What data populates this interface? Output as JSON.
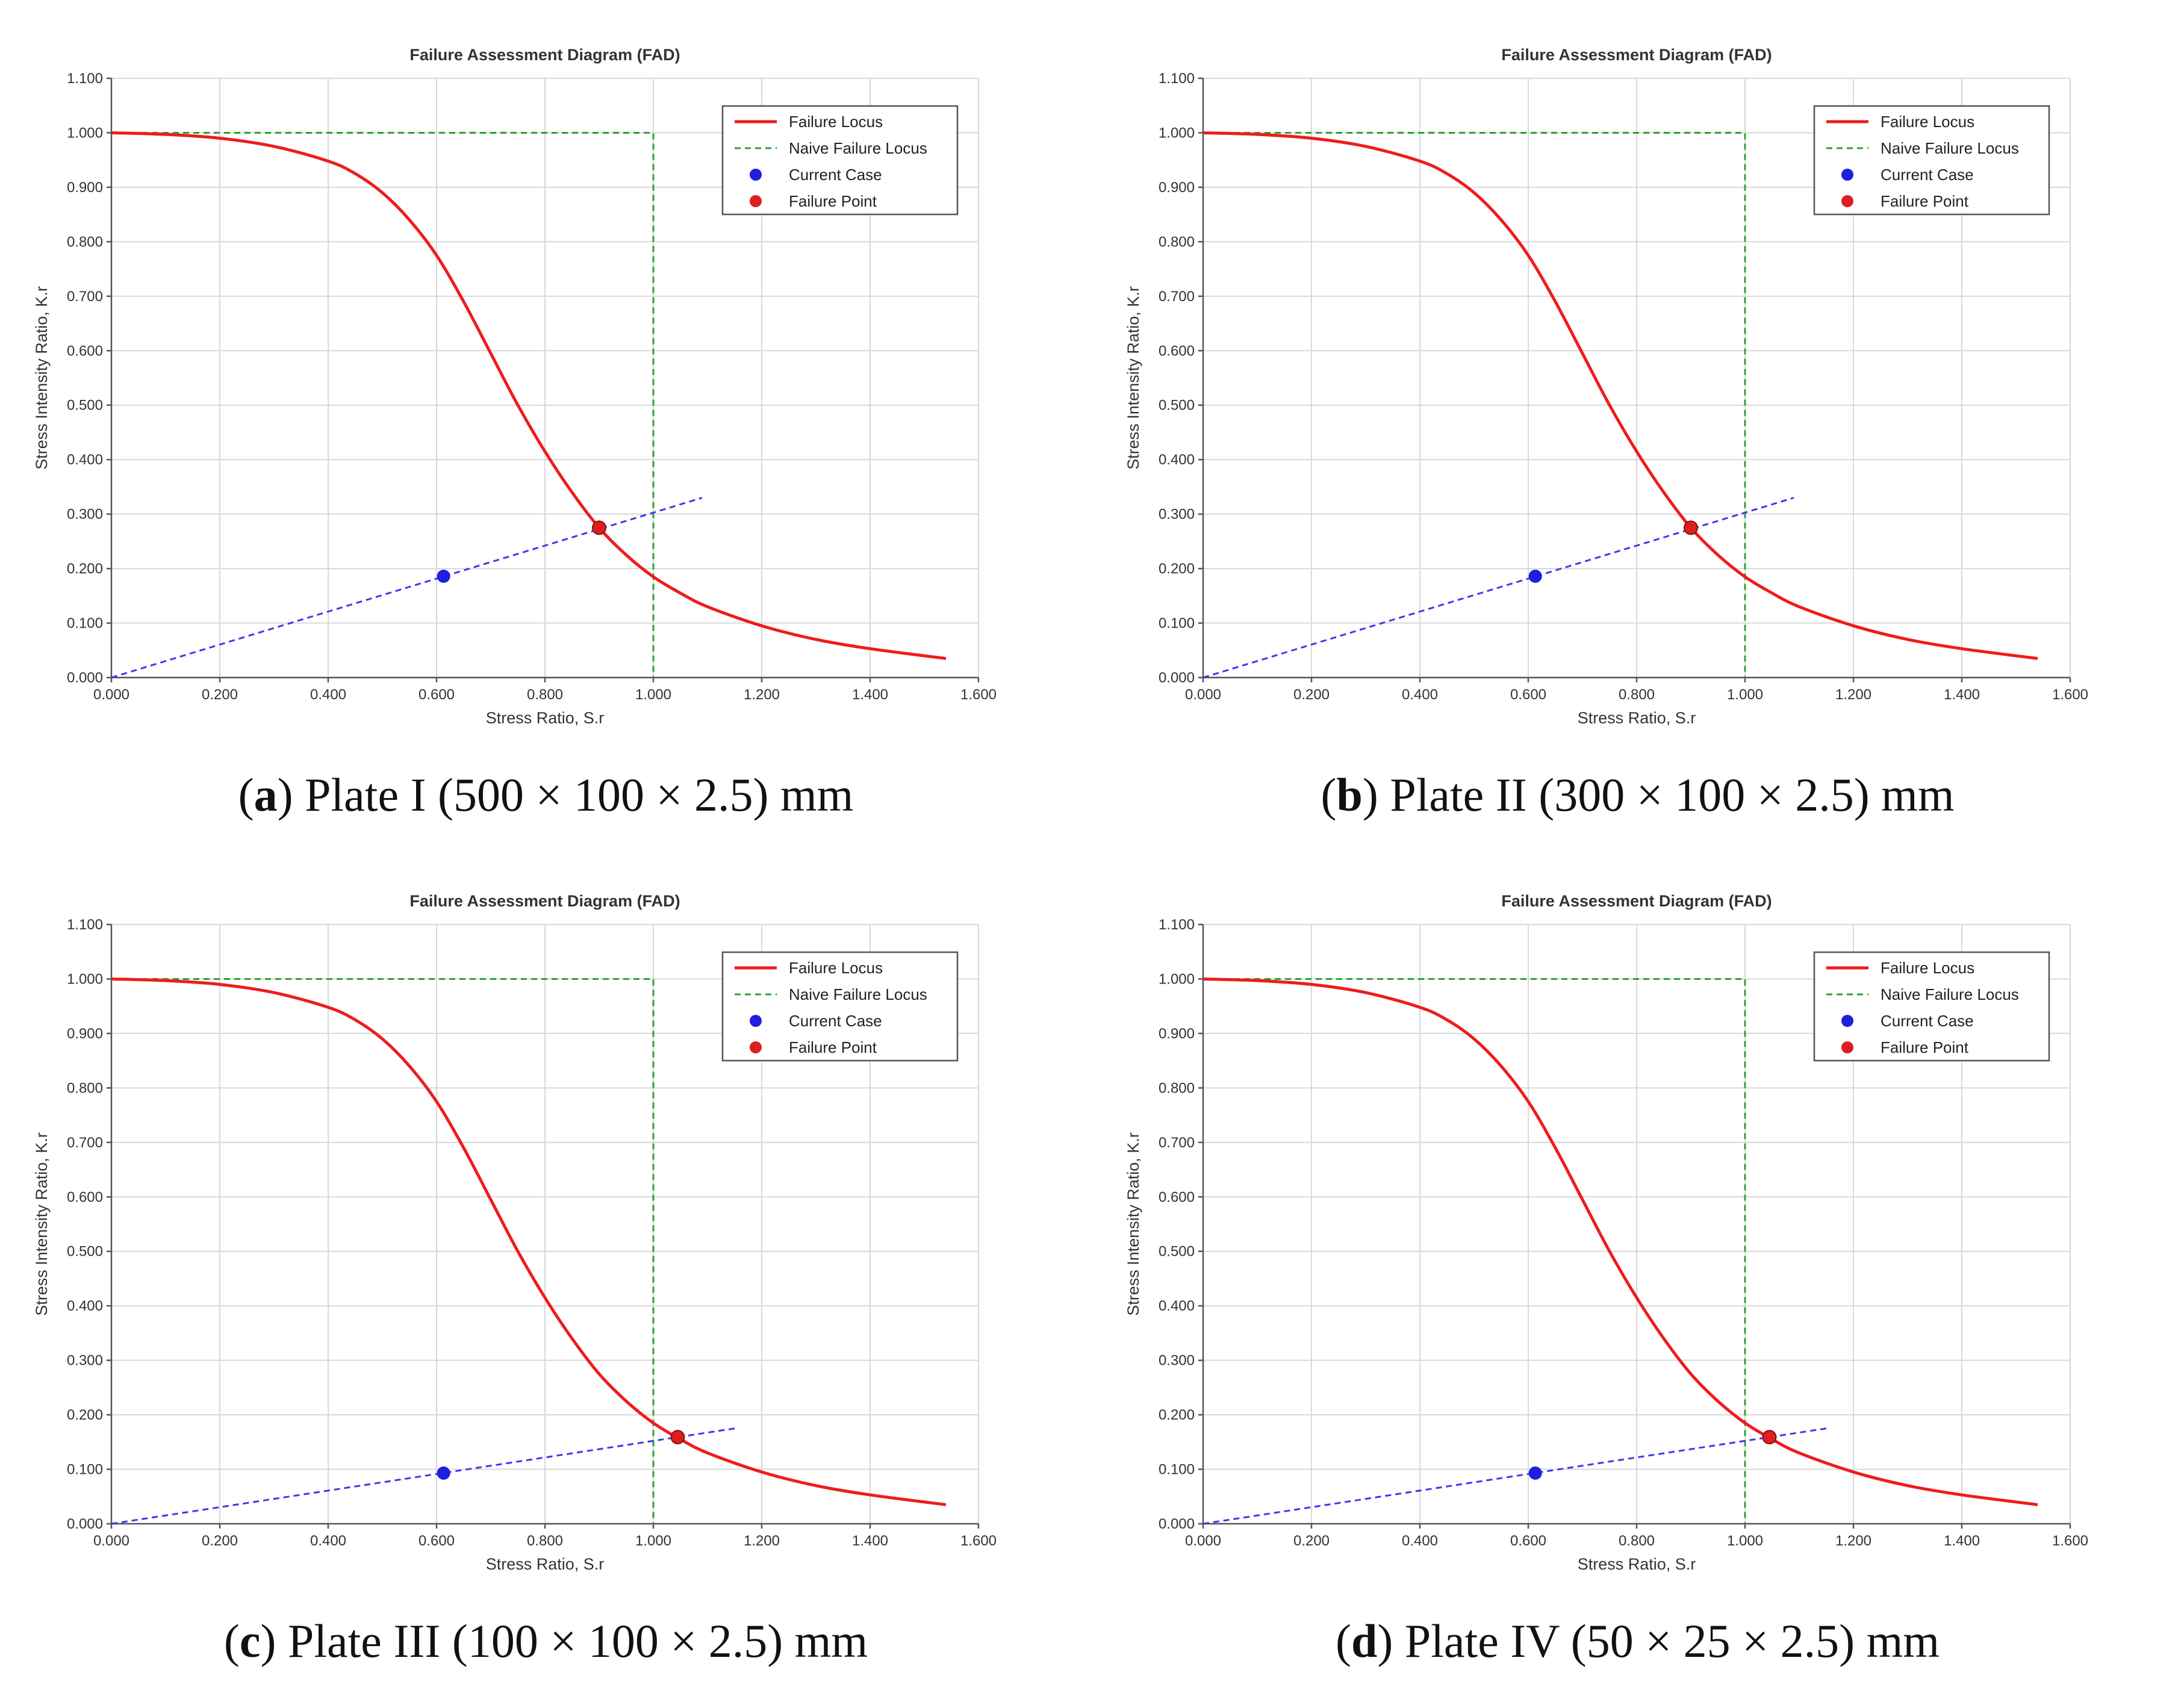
{
  "colors": {
    "failure_locus": "#ee1c1c",
    "naive_locus": "#2ea02e",
    "current_case": "#1f1fdd",
    "failure_point": "#dd1f1f",
    "load_line": "#3a3aee",
    "grid": "#d9d9d9"
  },
  "chart_data": [
    {
      "type": "line",
      "title": "Failure Assessment Diagram (FAD)",
      "xlabel": "Stress Ratio, S.r",
      "ylabel": "Stress Intensity Ratio, K.r",
      "xlim": [
        0,
        1.6
      ],
      "ylim": [
        0,
        1.1
      ],
      "x_ticks": [
        "0.000",
        "0.200",
        "0.400",
        "0.600",
        "0.800",
        "1.000",
        "1.200",
        "1.400",
        "1.600"
      ],
      "y_ticks": [
        "0.000",
        "0.100",
        "0.200",
        "0.300",
        "0.400",
        "0.500",
        "0.600",
        "0.700",
        "0.800",
        "0.900",
        "1.000",
        "1.100"
      ],
      "grid": true,
      "legend_position": "top-right",
      "legend": [
        "Failure Locus",
        "Naive Failure Locus",
        "Current Case",
        "Failure Point"
      ],
      "failure_locus": {
        "x": [
          0.0,
          0.1,
          0.2,
          0.3,
          0.4,
          0.45,
          0.5,
          0.55,
          0.6,
          0.65,
          0.7,
          0.75,
          0.8,
          0.85,
          0.9,
          0.95,
          1.0,
          1.05,
          1.1,
          1.2,
          1.3,
          1.4,
          1.54
        ],
        "y": [
          1.0,
          0.997,
          0.99,
          0.975,
          0.948,
          0.925,
          0.89,
          0.84,
          0.775,
          0.69,
          0.595,
          0.5,
          0.415,
          0.34,
          0.275,
          0.225,
          0.185,
          0.155,
          0.13,
          0.095,
          0.07,
          0.053,
          0.035
        ]
      },
      "naive_failure_locus": {
        "x": [
          0,
          1.0,
          1.0
        ],
        "y": [
          1.0,
          1.0,
          0.0
        ]
      },
      "load_line": {
        "x": [
          0,
          1.09
        ],
        "y": [
          0,
          0.33
        ]
      },
      "current_case": {
        "x": 0.613,
        "y": 0.186
      },
      "failure_point": {
        "x": 0.9,
        "y": 0.275
      },
      "caption": {
        "letter": "a",
        "text": " Plate I (500 × 100 × 2.5) mm"
      }
    },
    {
      "type": "line",
      "title": "Failure Assessment Diagram (FAD)",
      "xlabel": "Stress Ratio, S.r",
      "ylabel": "Stress Intensity Ratio, K.r",
      "xlim": [
        0,
        1.6
      ],
      "ylim": [
        0,
        1.1
      ],
      "x_ticks": [
        "0.000",
        "0.200",
        "0.400",
        "0.600",
        "0.800",
        "1.000",
        "1.200",
        "1.400",
        "1.600"
      ],
      "y_ticks": [
        "0.000",
        "0.100",
        "0.200",
        "0.300",
        "0.400",
        "0.500",
        "0.600",
        "0.700",
        "0.800",
        "0.900",
        "1.000",
        "1.100"
      ],
      "grid": true,
      "legend_position": "top-right",
      "legend": [
        "Failure Locus",
        "Naive Failure Locus",
        "Current Case",
        "Failure Point"
      ],
      "failure_locus": {
        "x": [
          0.0,
          0.1,
          0.2,
          0.3,
          0.4,
          0.45,
          0.5,
          0.55,
          0.6,
          0.65,
          0.7,
          0.75,
          0.8,
          0.85,
          0.9,
          0.95,
          1.0,
          1.05,
          1.1,
          1.2,
          1.3,
          1.4,
          1.54
        ],
        "y": [
          1.0,
          0.997,
          0.99,
          0.975,
          0.948,
          0.925,
          0.89,
          0.84,
          0.775,
          0.69,
          0.595,
          0.5,
          0.415,
          0.34,
          0.275,
          0.225,
          0.185,
          0.155,
          0.13,
          0.095,
          0.07,
          0.053,
          0.035
        ]
      },
      "naive_failure_locus": {
        "x": [
          0,
          1.0,
          1.0
        ],
        "y": [
          1.0,
          1.0,
          0.0
        ]
      },
      "load_line": {
        "x": [
          0,
          1.09
        ],
        "y": [
          0,
          0.33
        ]
      },
      "current_case": {
        "x": 0.613,
        "y": 0.186
      },
      "failure_point": {
        "x": 0.9,
        "y": 0.275
      },
      "caption": {
        "letter": "b",
        "text": " Plate II (300 × 100 × 2.5) mm"
      }
    },
    {
      "type": "line",
      "title": "Failure Assessment Diagram (FAD)",
      "xlabel": "Stress Ratio, S.r",
      "ylabel": "Stress Intensity Ratio, K.r",
      "xlim": [
        0,
        1.6
      ],
      "ylim": [
        0,
        1.1
      ],
      "x_ticks": [
        "0.000",
        "0.200",
        "0.400",
        "0.600",
        "0.800",
        "1.000",
        "1.200",
        "1.400",
        "1.600"
      ],
      "y_ticks": [
        "0.000",
        "0.100",
        "0.200",
        "0.300",
        "0.400",
        "0.500",
        "0.600",
        "0.700",
        "0.800",
        "0.900",
        "1.000",
        "1.100"
      ],
      "grid": true,
      "legend_position": "top-right",
      "legend": [
        "Failure Locus",
        "Naive Failure Locus",
        "Current Case",
        "Failure Point"
      ],
      "failure_locus": {
        "x": [
          0.0,
          0.1,
          0.2,
          0.3,
          0.4,
          0.45,
          0.5,
          0.55,
          0.6,
          0.65,
          0.7,
          0.75,
          0.8,
          0.85,
          0.9,
          0.95,
          1.0,
          1.05,
          1.1,
          1.2,
          1.3,
          1.4,
          1.54
        ],
        "y": [
          1.0,
          0.997,
          0.99,
          0.975,
          0.948,
          0.925,
          0.89,
          0.84,
          0.775,
          0.69,
          0.595,
          0.5,
          0.415,
          0.34,
          0.275,
          0.225,
          0.185,
          0.155,
          0.13,
          0.095,
          0.07,
          0.053,
          0.035
        ]
      },
      "naive_failure_locus": {
        "x": [
          0,
          1.0,
          1.0
        ],
        "y": [
          1.0,
          1.0,
          0.0
        ]
      },
      "load_line": {
        "x": [
          0,
          1.15
        ],
        "y": [
          0,
          0.175
        ]
      },
      "current_case": {
        "x": 0.613,
        "y": 0.093
      },
      "failure_point": {
        "x": 1.045,
        "y": 0.159
      },
      "caption": {
        "letter": "c",
        "text": " Plate III (100 × 100 × 2.5) mm"
      }
    },
    {
      "type": "line",
      "title": "Failure Assessment Diagram (FAD)",
      "xlabel": "Stress Ratio, S.r",
      "ylabel": "Stress Intensity Ratio, K.r",
      "xlim": [
        0,
        1.6
      ],
      "ylim": [
        0,
        1.1
      ],
      "x_ticks": [
        "0.000",
        "0.200",
        "0.400",
        "0.600",
        "0.800",
        "1.000",
        "1.200",
        "1.400",
        "1.600"
      ],
      "y_ticks": [
        "0.000",
        "0.100",
        "0.200",
        "0.300",
        "0.400",
        "0.500",
        "0.600",
        "0.700",
        "0.800",
        "0.900",
        "1.000",
        "1.100"
      ],
      "grid": true,
      "legend_position": "top-right",
      "legend": [
        "Failure Locus",
        "Naive Failure Locus",
        "Current Case",
        "Failure Point"
      ],
      "failure_locus": {
        "x": [
          0.0,
          0.1,
          0.2,
          0.3,
          0.4,
          0.45,
          0.5,
          0.55,
          0.6,
          0.65,
          0.7,
          0.75,
          0.8,
          0.85,
          0.9,
          0.95,
          1.0,
          1.05,
          1.1,
          1.2,
          1.3,
          1.4,
          1.54
        ],
        "y": [
          1.0,
          0.997,
          0.99,
          0.975,
          0.948,
          0.925,
          0.89,
          0.84,
          0.775,
          0.69,
          0.595,
          0.5,
          0.415,
          0.34,
          0.275,
          0.225,
          0.185,
          0.155,
          0.13,
          0.095,
          0.07,
          0.053,
          0.035
        ]
      },
      "naive_failure_locus": {
        "x": [
          0,
          1.0,
          1.0
        ],
        "y": [
          1.0,
          1.0,
          0.0
        ]
      },
      "load_line": {
        "x": [
          0,
          1.15
        ],
        "y": [
          0,
          0.175
        ]
      },
      "current_case": {
        "x": 0.613,
        "y": 0.093
      },
      "failure_point": {
        "x": 1.045,
        "y": 0.159
      },
      "caption": {
        "letter": "d",
        "text": " Plate IV (50 × 25 × 2.5) mm"
      }
    }
  ]
}
